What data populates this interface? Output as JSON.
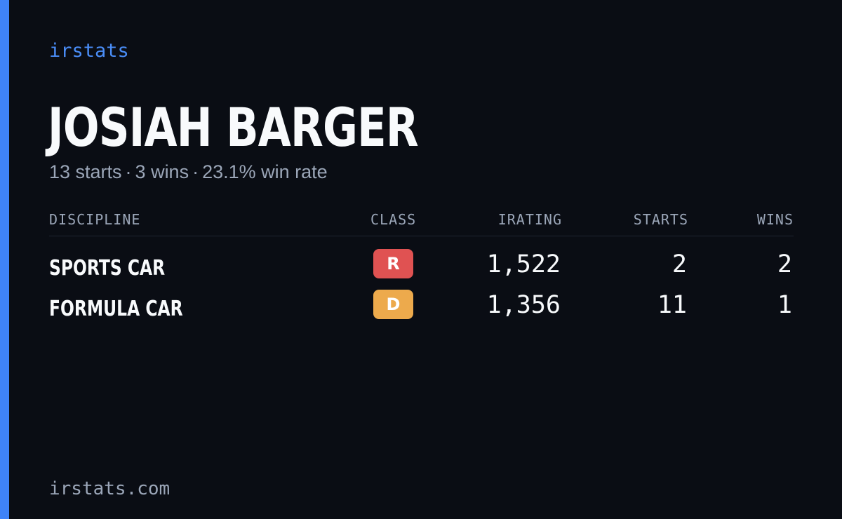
{
  "brand": "irstats",
  "player": {
    "name": "JOSIAH BARGER"
  },
  "summary": {
    "starts": "13 starts",
    "wins": "3 wins",
    "win_rate": "23.1% win rate",
    "separator": "·"
  },
  "table": {
    "headers": {
      "discipline": "DISCIPLINE",
      "class": "CLASS",
      "irating": "IRATING",
      "starts": "STARTS",
      "wins": "WINS"
    },
    "rows": [
      {
        "discipline": "SPORTS CAR",
        "class": "R",
        "class_color": "#e05252",
        "irating": "1,522",
        "starts": "2",
        "wins": "2"
      },
      {
        "discipline": "FORMULA CAR",
        "class": "D",
        "class_color": "#edaa4c",
        "irating": "1,356",
        "starts": "11",
        "wins": "1"
      }
    ]
  },
  "footer": {
    "url": "irstats.com"
  },
  "colors": {
    "accent": "#3f83f8",
    "background": "#0a0d14"
  }
}
